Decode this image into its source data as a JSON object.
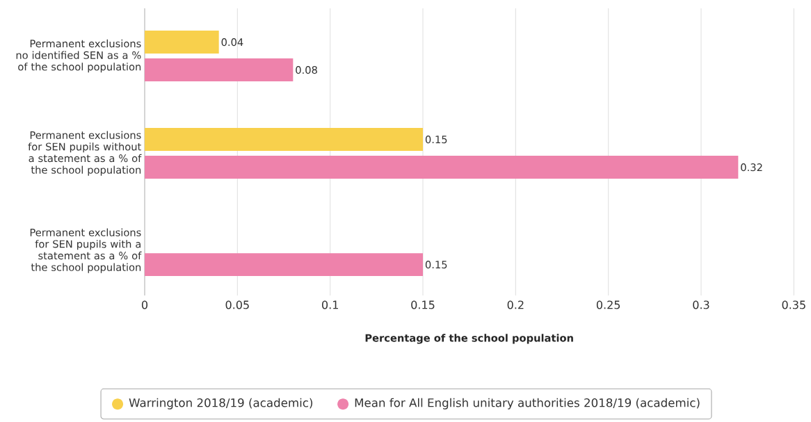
{
  "chart_data": {
    "type": "bar",
    "orientation": "horizontal",
    "xlabel": "Percentage of the school population",
    "categories": [
      "Permanent exclusions no identified SEN as a % of the school population",
      "Permanent exclusions for SEN pupils without a statement as a % of the school population",
      "Permanent exclusions for SEN pupils with a statement as a % of the school population"
    ],
    "series": [
      {
        "name": "Warrington 2018/19 (academic)",
        "color": "#f8d04c",
        "values": [
          0.04,
          0.15,
          null
        ]
      },
      {
        "name": "Mean for All English unitary authorities 2018/19 (academic)",
        "color": "#ee82ab",
        "values": [
          0.08,
          0.32,
          0.15
        ]
      }
    ],
    "xlim": [
      0,
      0.35
    ],
    "xticks": [
      0,
      0.05,
      0.1,
      0.15,
      0.2,
      0.25,
      0.3,
      0.35
    ],
    "grid": "x",
    "legend": "bottom",
    "data_labels": true
  }
}
